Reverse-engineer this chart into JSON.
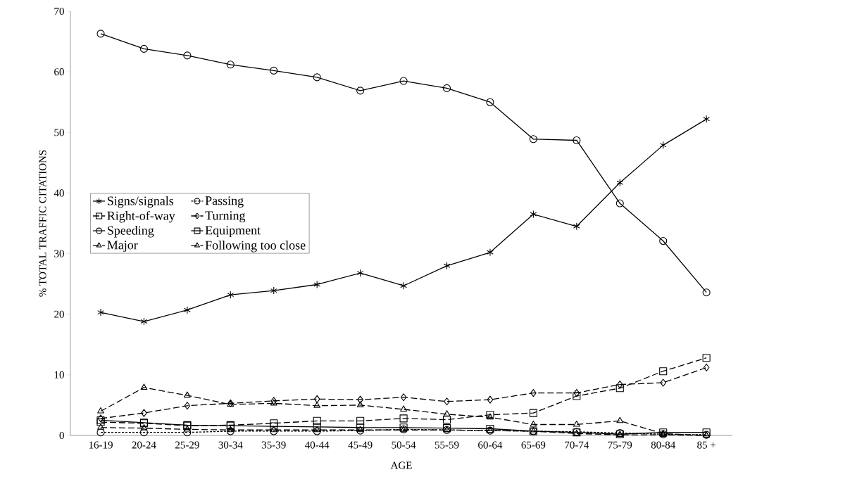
{
  "chart_data": {
    "type": "line",
    "xlabel": "AGE",
    "ylabel": "% TOTAL TRAFFIC CITATIONS",
    "categories": [
      "16-19",
      "20-24",
      "25-29",
      "30-34",
      "35-39",
      "40-44",
      "45-49",
      "50-54",
      "55-59",
      "60-64",
      "65-69",
      "70-74",
      "75-79",
      "80-84",
      "85 +"
    ],
    "ylim": [
      0,
      70
    ],
    "yticks": [
      0,
      10,
      20,
      30,
      40,
      50,
      60,
      70
    ],
    "grid": false,
    "legend": "left",
    "series": [
      {
        "name": "Signs/signals",
        "color": "#000000",
        "marker": "cross",
        "line_style": "solid",
        "values": [
          20.3,
          18.8,
          20.7,
          23.2,
          23.9,
          24.9,
          26.8,
          24.7,
          28.0,
          30.2,
          36.5,
          34.5,
          41.7,
          47.9,
          52.2
        ]
      },
      {
        "name": "Passing",
        "color": "#000000",
        "marker": "circle",
        "line_style": "dotted",
        "values": [
          0.5,
          0.5,
          0.5,
          0.7,
          0.7,
          0.7,
          0.8,
          1.0,
          0.9,
          0.8,
          0.7,
          0.6,
          0.4,
          0.2,
          0.1
        ]
      },
      {
        "name": "Right-of-way",
        "color": "#000000",
        "marker": "square",
        "line_style": "dashed",
        "values": [
          2.2,
          2.0,
          1.6,
          1.7,
          2.0,
          2.4,
          2.4,
          2.8,
          2.6,
          3.4,
          3.7,
          6.5,
          7.8,
          10.6,
          12.8
        ]
      },
      {
        "name": "Turning",
        "color": "#000000",
        "marker": "diamond",
        "line_style": "dashed",
        "values": [
          2.8,
          3.7,
          4.9,
          5.3,
          5.7,
          6.0,
          5.9,
          6.3,
          5.6,
          5.9,
          7.0,
          7.0,
          8.4,
          8.7,
          11.2
        ]
      },
      {
        "name": "Speeding",
        "color": "#000000",
        "marker": "circle",
        "line_style": "solid",
        "values": [
          66.3,
          63.8,
          62.7,
          61.2,
          60.2,
          59.1,
          56.9,
          58.5,
          57.3,
          55.0,
          48.9,
          48.7,
          38.3,
          32.1,
          23.6
        ]
      },
      {
        "name": "Equipment",
        "color": "#000000",
        "marker": "square",
        "line_style": "solid",
        "values": [
          2.5,
          2.1,
          1.7,
          1.6,
          1.5,
          1.4,
          1.3,
          1.3,
          1.2,
          1.1,
          0.7,
          0.5,
          0.2,
          0.5,
          0.5
        ]
      },
      {
        "name": "Major",
        "color": "#000000",
        "marker": "triangle",
        "line_style": "dashed",
        "values": [
          4.0,
          7.9,
          6.6,
          5.1,
          5.3,
          4.9,
          5.0,
          4.3,
          3.5,
          3.0,
          1.8,
          1.8,
          2.4,
          0.3,
          0.0
        ]
      },
      {
        "name": "Following too close",
        "color": "#000000",
        "marker": "triangle",
        "line_style": "dashed",
        "values": [
          1.3,
          1.2,
          1.0,
          0.9,
          0.9,
          0.9,
          0.9,
          0.9,
          0.9,
          0.8,
          0.7,
          0.3,
          0.1,
          0.1,
          0.0
        ]
      }
    ]
  }
}
